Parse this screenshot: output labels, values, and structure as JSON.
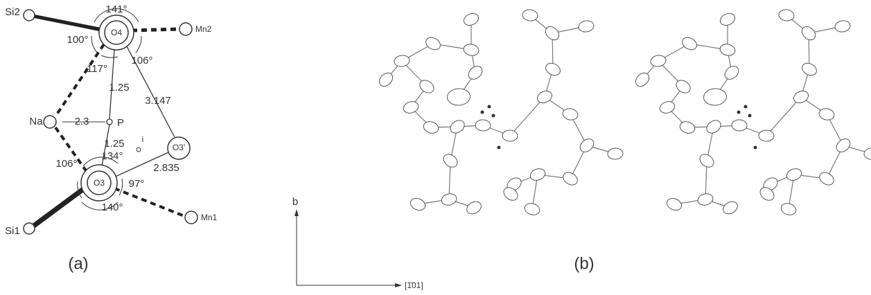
{
  "panel_a": {
    "labels": [
      "Si2",
      "141°",
      "Mn2",
      "O4",
      "100°",
      "106°",
      "117°",
      "1.25",
      "3.147",
      "Na",
      "2.3",
      "P",
      "1.25",
      "134°",
      "i",
      "O3'",
      "2.835",
      "106°",
      "O3",
      "97°",
      "Si1",
      "Mn1",
      "140°"
    ],
    "caption": "(a)"
  },
  "panel_b": {
    "axis_vertical": "b",
    "axis_horizontal": "[1̄01]",
    "caption": "(b)"
  }
}
